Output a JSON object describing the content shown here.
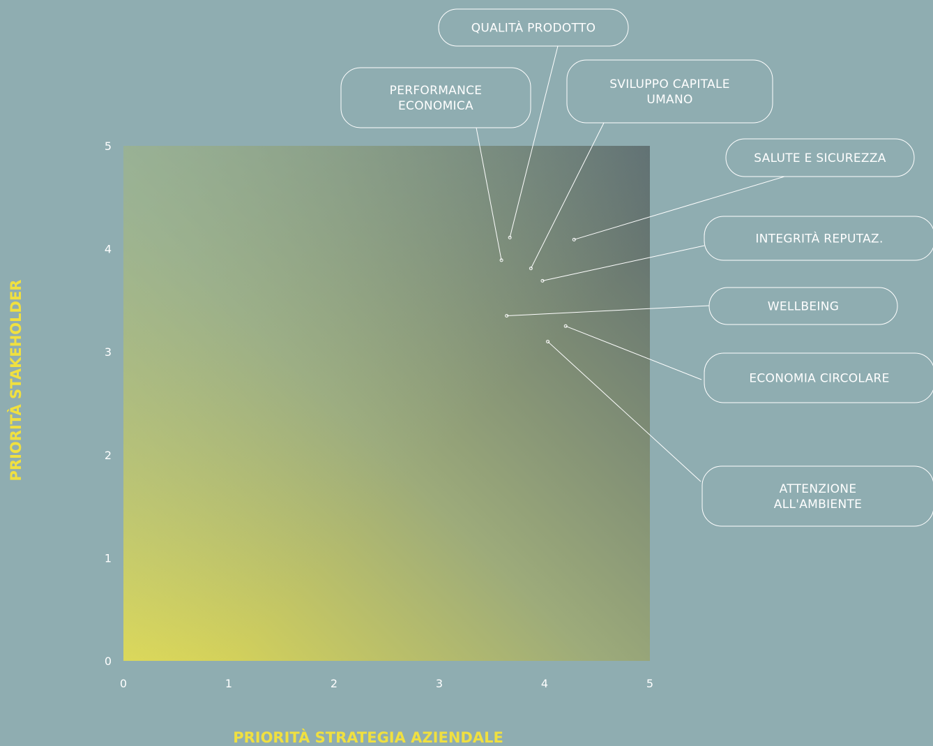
{
  "chart_data": {
    "type": "scatter",
    "xlabel": "PRIORITÀ STRATEGIA AZIENDALE",
    "ylabel": "PRIORITÀ  STAKEHOLDER",
    "xlim": [
      0,
      5
    ],
    "ylim": [
      0,
      5
    ],
    "x_ticks": [
      "0",
      "1",
      "2",
      "3",
      "4",
      "5"
    ],
    "y_ticks": [
      "0",
      "1",
      "2",
      "3",
      "4",
      "5"
    ],
    "grid": false,
    "points": [
      {
        "label": [
          "QUALITÀ PRODOTTO"
        ],
        "x": 3.67,
        "y": 4.11
      },
      {
        "label": [
          "PERFORMANCE",
          "ECONOMICA"
        ],
        "x": 3.59,
        "y": 3.89
      },
      {
        "label": [
          "SVILUPPO CAPITALE",
          "UMANO"
        ],
        "x": 3.87,
        "y": 3.81
      },
      {
        "label": [
          "SALUTE E SICUREZZA"
        ],
        "x": 4.28,
        "y": 4.09
      },
      {
        "label": [
          "INTEGRITÀ REPUTAZ."
        ],
        "x": 3.98,
        "y": 3.69
      },
      {
        "label": [
          "WELLBEING"
        ],
        "x": 3.64,
        "y": 3.35
      },
      {
        "label": [
          "ECONOMIA CIRCOLARE"
        ],
        "x": 4.2,
        "y": 3.25
      },
      {
        "label": [
          "ATTENZIONE",
          "ALL'AMBIENTE"
        ],
        "x": 4.03,
        "y": 3.1
      }
    ]
  },
  "colors": {
    "background": "#8fadb1",
    "gradient_low": "#e3dc52",
    "gradient_high": "#5b6a6f",
    "axis_title": "#f0e040",
    "text": "#ffffff"
  }
}
